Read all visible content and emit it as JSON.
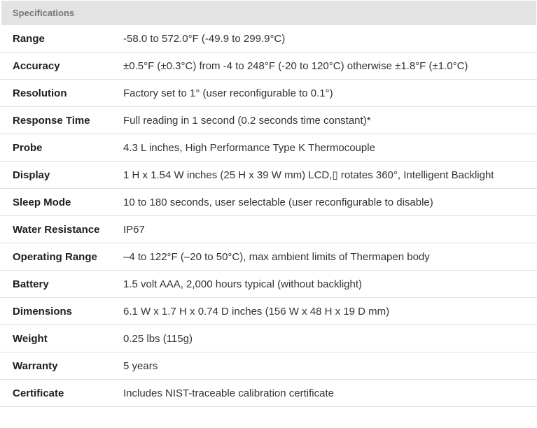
{
  "panel": {
    "title": "Specifications"
  },
  "table": {
    "rows": [
      {
        "label": "Range",
        "value": "-58.0 to 572.0°F (-49.9 to 299.9°C)"
      },
      {
        "label": "Accuracy",
        "value": "±0.5°F (±0.3°C) from -4 to 248°F (-20 to 120°C) otherwise ±1.8°F (±1.0°C)"
      },
      {
        "label": "Resolution",
        "value": "Factory set to 1° (user reconfigurable to 0.1°)"
      },
      {
        "label": "Response Time",
        "value": "Full reading in 1 second (0.2 seconds time constant)*"
      },
      {
        "label": "Probe",
        "value": "4.3 L inches, High Performance Type K Thermocouple"
      },
      {
        "label": "Display",
        "value": "1 H x 1.54 W inches (25 H x 39 W mm) LCD,▯ rotates 360°, Intelligent Backlight"
      },
      {
        "label": "Sleep Mode",
        "value": "10 to 180 seconds, user selectable (user reconfigurable to disable)"
      },
      {
        "label": "Water Resistance",
        "value": "IP67"
      },
      {
        "label": "Operating Range",
        "value": "–4 to 122°F (–20 to 50°C), max ambient limits of Thermapen body"
      },
      {
        "label": "Battery",
        "value": "1.5 volt AAA, 2,000 hours typical (without backlight)"
      },
      {
        "label": "Dimensions",
        "value": "6.1 W x 1.7 H x 0.74 D inches (156 W x 48 H x 19 D mm)"
      },
      {
        "label": "Weight",
        "value": "0.25 lbs (115g)"
      },
      {
        "label": "Warranty",
        "value": "5 years"
      },
      {
        "label": "Certificate",
        "value": "Includes NIST-traceable calibration certificate"
      }
    ]
  },
  "colors": {
    "header_bg": "#e3e3e3",
    "header_text": "#757575",
    "divider": "#e0e0e0",
    "label_text": "#1f1f1f",
    "value_text": "#333333"
  }
}
